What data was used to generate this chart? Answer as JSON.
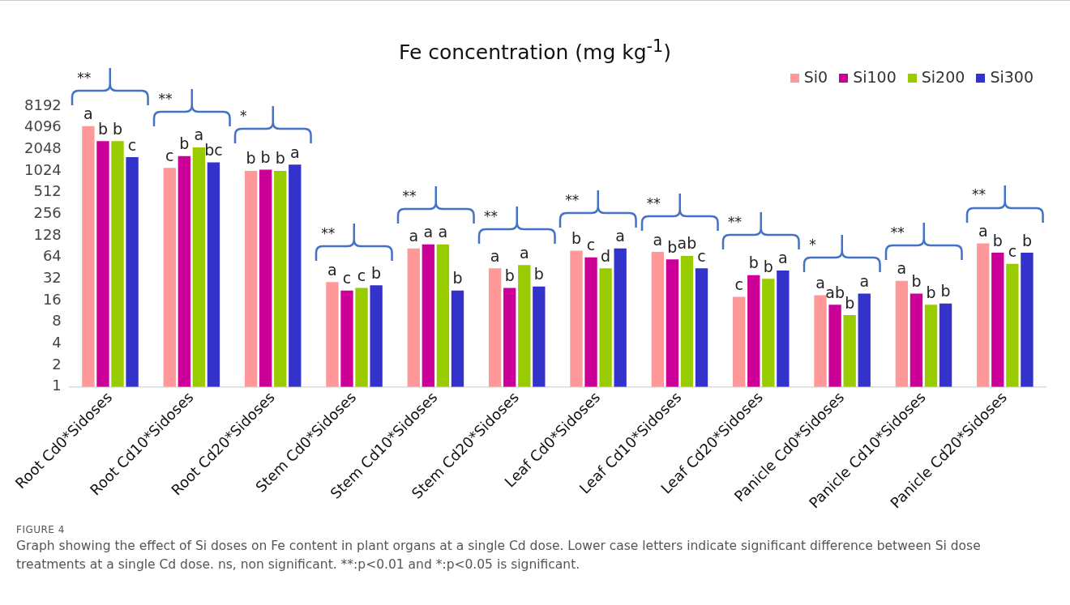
{
  "chart_data": {
    "type": "bar",
    "title": "Fe concentration (mg kg$^{-1}$)",
    "categories": [
      "Root Cd0*Sidoses",
      "Root Cd10*Sidoses",
      "Root Cd20*Sidoses",
      "Stem Cd0*Sidoses",
      "Stem Cd10*Sidoses",
      "Stem Cd20*Sidoses",
      "Leaf Cd0*Sidoses",
      "Leaf Cd10*Sidoses",
      "Leaf Cd20*Sidoses",
      "Panicle Cd0*Sidoses",
      "Panicle Cd10*Sidoses",
      "Panicle Cd20*Sidoses"
    ],
    "series": [
      {
        "name": "Si0",
        "color": "#ff9999",
        "values": [
          4300,
          1130,
          1024,
          29,
          85,
          45,
          79,
          76,
          18,
          19,
          30,
          100
        ],
        "value_labels": [
          "a",
          "c",
          "b",
          "a",
          "a",
          "a",
          "b",
          "a",
          "c",
          "a",
          "a",
          "a"
        ]
      },
      {
        "name": "Si100",
        "color": "#cc0099",
        "values": [
          2670,
          1650,
          1065,
          22,
          97,
          24,
          64,
          60,
          36,
          14,
          20,
          74
        ],
        "value_labels": [
          "b",
          "b",
          "b",
          "c",
          "a",
          "b",
          "c",
          "b",
          "b",
          "ab",
          "b",
          "b"
        ]
      },
      {
        "name": "Si200",
        "color": "#99cc00",
        "values": [
          2670,
          2180,
          1024,
          24,
          97,
          50,
          45,
          67,
          32,
          10,
          14,
          52
        ],
        "value_labels": [
          "b",
          "a",
          "b",
          "c",
          "a",
          "a",
          "d",
          "ab",
          "b",
          "b",
          "b",
          "c"
        ]
      },
      {
        "name": "Si300",
        "color": "#3333cc",
        "values": [
          1590,
          1350,
          1250,
          26,
          22,
          25,
          85,
          45,
          42,
          20,
          14.5,
          74
        ],
        "value_labels": [
          "c",
          "bc",
          "a",
          "b",
          "b",
          "b",
          "a",
          "c",
          "a",
          "a",
          "b",
          "b"
        ]
      }
    ],
    "log": "y",
    "ylim": [
      1,
      8192
    ],
    "yticks": [
      1,
      2,
      4,
      8,
      16,
      32,
      64,
      128,
      256,
      512,
      1024,
      2048,
      4096,
      8192
    ],
    "grid": false,
    "legend": "top right",
    "annotations": [
      "**",
      "**",
      "*",
      "**",
      "**",
      "**",
      "**",
      "**",
      "**",
      "*",
      "**",
      "**",
      "FIGURE 4",
      "Graph showing the effect of Si doses on Fe content in plant organs at a single Cd dose. Lower case letters indicate significant difference between Si dose treatments at a single Cd dose. ns, non significant. **:p<0.01 and *:p<0.05 is significant."
    ]
  }
}
